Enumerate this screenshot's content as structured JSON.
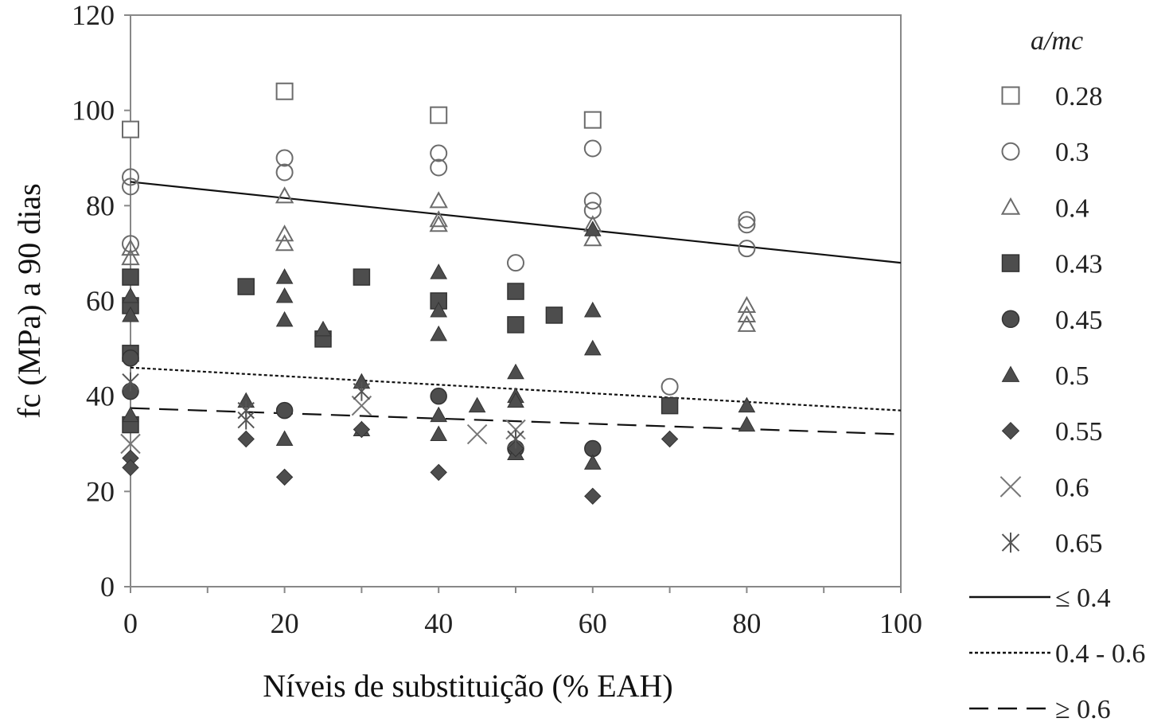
{
  "chart_data": {
    "type": "scatter",
    "title": "",
    "xlabel": "Níveis de substituição (% EAH)",
    "ylabel": "fc (MPa) a 90 dias",
    "xlim": [
      0,
      100
    ],
    "ylim": [
      0,
      120
    ],
    "x_ticks": [
      0,
      20,
      40,
      60,
      80,
      100
    ],
    "y_ticks": [
      0,
      20,
      40,
      60,
      80,
      100,
      120
    ],
    "grid": false,
    "legend_title": "a/mc",
    "legend_position": "right",
    "series": [
      {
        "name": "0.28",
        "marker": "square-open",
        "points": [
          [
            0,
            96
          ],
          [
            20,
            104
          ],
          [
            40,
            99
          ],
          [
            60,
            98
          ]
        ]
      },
      {
        "name": "0.3",
        "marker": "circle-open",
        "points": [
          [
            0,
            86
          ],
          [
            0,
            84
          ],
          [
            0,
            72
          ],
          [
            20,
            90
          ],
          [
            20,
            87
          ],
          [
            40,
            91
          ],
          [
            40,
            88
          ],
          [
            50,
            68
          ],
          [
            60,
            92
          ],
          [
            60,
            81
          ],
          [
            60,
            79
          ],
          [
            70,
            42
          ],
          [
            80,
            77
          ],
          [
            80,
            76
          ],
          [
            80,
            71
          ]
        ]
      },
      {
        "name": "0.4",
        "marker": "triangle-open",
        "points": [
          [
            0,
            71
          ],
          [
            0,
            69
          ],
          [
            20,
            82
          ],
          [
            20,
            74
          ],
          [
            20,
            72
          ],
          [
            40,
            81
          ],
          [
            40,
            77
          ],
          [
            40,
            76
          ],
          [
            60,
            76
          ],
          [
            60,
            73
          ],
          [
            80,
            59
          ],
          [
            80,
            57
          ],
          [
            80,
            55
          ]
        ]
      },
      {
        "name": "0.43",
        "marker": "square-filled",
        "points": [
          [
            0,
            65
          ],
          [
            0,
            59
          ],
          [
            0,
            49
          ],
          [
            0,
            34
          ],
          [
            15,
            63
          ],
          [
            25,
            52
          ],
          [
            30,
            65
          ],
          [
            40,
            60
          ],
          [
            50,
            62
          ],
          [
            50,
            55
          ],
          [
            55,
            57
          ],
          [
            70,
            38
          ]
        ]
      },
      {
        "name": "0.45",
        "marker": "circle-filled",
        "points": [
          [
            0,
            48
          ],
          [
            0,
            41
          ],
          [
            20,
            37
          ],
          [
            40,
            40
          ],
          [
            50,
            29
          ],
          [
            60,
            29
          ]
        ]
      },
      {
        "name": "0.5",
        "marker": "triangle-filled",
        "points": [
          [
            0,
            61
          ],
          [
            0,
            57
          ],
          [
            0,
            36
          ],
          [
            15,
            39
          ],
          [
            20,
            65
          ],
          [
            20,
            61
          ],
          [
            20,
            56
          ],
          [
            20,
            31
          ],
          [
            25,
            54
          ],
          [
            30,
            43
          ],
          [
            30,
            33
          ],
          [
            40,
            66
          ],
          [
            40,
            58
          ],
          [
            40,
            53
          ],
          [
            40,
            36
          ],
          [
            40,
            32
          ],
          [
            45,
            38
          ],
          [
            50,
            45
          ],
          [
            50,
            40
          ],
          [
            50,
            39
          ],
          [
            50,
            28
          ],
          [
            60,
            75
          ],
          [
            60,
            58
          ],
          [
            60,
            50
          ],
          [
            60,
            26
          ],
          [
            80,
            38
          ],
          [
            80,
            34
          ]
        ]
      },
      {
        "name": "0.55",
        "marker": "diamond-filled",
        "points": [
          [
            0,
            27
          ],
          [
            0,
            25
          ],
          [
            15,
            31
          ],
          [
            20,
            23
          ],
          [
            30,
            33
          ],
          [
            40,
            24
          ],
          [
            50,
            29
          ],
          [
            60,
            19
          ],
          [
            70,
            31
          ]
        ]
      },
      {
        "name": "0.6",
        "marker": "x",
        "points": [
          [
            0,
            30
          ],
          [
            30,
            38
          ],
          [
            45,
            32
          ],
          [
            50,
            33
          ]
        ]
      },
      {
        "name": "0.65",
        "marker": "asterisk",
        "points": [
          [
            0,
            43
          ],
          [
            15,
            37
          ],
          [
            15,
            35
          ],
          [
            30,
            41
          ],
          [
            50,
            31
          ]
        ]
      }
    ],
    "trendlines": [
      {
        "name": "≤ 0.4",
        "style": "solid",
        "x": [
          0,
          100
        ],
        "y": [
          85,
          68
        ]
      },
      {
        "name": "0.4 - 0.6",
        "style": "dotted",
        "x": [
          0,
          100
        ],
        "y": [
          46,
          37
        ]
      },
      {
        "name": "≥ 0.6",
        "style": "dashed",
        "x": [
          0,
          100
        ],
        "y": [
          37.5,
          32
        ]
      }
    ]
  }
}
